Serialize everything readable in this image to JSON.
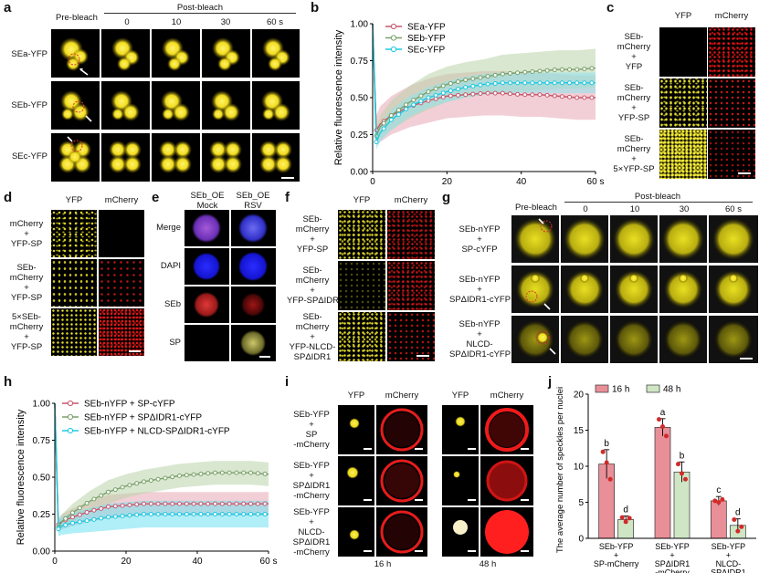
{
  "panels": {
    "a": {
      "letter": "a",
      "header_pre": "Pre-bleach",
      "header_post": "Post-bleach",
      "times": [
        "0",
        "10",
        "30",
        "60 s"
      ],
      "rows": [
        "SEa-YFP",
        "SEb-YFP",
        "SEc-YFP"
      ]
    },
    "b": {
      "letter": "b"
    },
    "c": {
      "letter": "c",
      "cols": [
        "YFP",
        "mCherry"
      ],
      "rows": [
        [
          "SEb-",
          "mCherry",
          "+",
          "YFP"
        ],
        [
          "SEb-",
          "mCherry",
          "+",
          "YFP-SP"
        ],
        [
          "SEb-",
          "mCherry",
          "+",
          "5×YFP-SP"
        ]
      ]
    },
    "d": {
      "letter": "d",
      "cols": [
        "YFP",
        "mCherry"
      ],
      "rows": [
        [
          "mCherry",
          "+",
          "YFP-SP"
        ],
        [
          "SEb-",
          "mCherry",
          "+",
          "YFP-SP"
        ],
        [
          "5×SEb-",
          "mCherry",
          "+",
          "YFP-SP"
        ]
      ]
    },
    "e": {
      "letter": "e",
      "cols": [
        [
          "SEb_OE",
          "Mock"
        ],
        [
          "SEb_OE",
          "RSV"
        ]
      ],
      "rows": [
        "Merge",
        "DAPI",
        "SEb",
        "SP"
      ]
    },
    "f": {
      "letter": "f",
      "cols": [
        "YFP",
        "mCherry"
      ],
      "rows": [
        [
          "SEb-",
          "mCherry",
          "+",
          "YFP-SP"
        ],
        [
          "SEb-",
          "mCherry",
          "+",
          "YFP-SPΔIDR1"
        ],
        [
          "SEb-",
          "mCherry",
          "+",
          "YFP-NLCD-",
          "SPΔIDR1"
        ]
      ]
    },
    "g": {
      "letter": "g",
      "header_pre": "Pre-bleach",
      "header_post": "Post-bleach",
      "times": [
        "0",
        "10",
        "30",
        "60 s"
      ],
      "rows": [
        [
          "SEb-nYFP",
          "+",
          "SP-cYFP"
        ],
        [
          "SEb-nYFP",
          "+",
          "SPΔIDR1-cYFP"
        ],
        [
          "SEb-nYFP",
          "+",
          "NLCD-",
          "SPΔIDR1-cYFP"
        ]
      ]
    },
    "h": {
      "letter": "h"
    },
    "i": {
      "letter": "i",
      "cols": [
        "YFP",
        "mCherry",
        "YFP",
        "mCherry"
      ],
      "times": [
        "16 h",
        "48 h"
      ],
      "rows": [
        [
          "SEb-YFP",
          "+",
          "SP",
          "-mCherry"
        ],
        [
          "SEb-YFP",
          "+",
          "SPΔIDR1",
          "-mCherry"
        ],
        [
          "SEb-YFP",
          "+",
          "NLCD-",
          "SPΔIDR1",
          "-mCherry"
        ]
      ]
    },
    "j": {
      "letter": "j"
    }
  },
  "chart_data": [
    {
      "panel": "b",
      "type": "line",
      "ylabel": "Relative fluorescence intensity",
      "xlim": [
        0,
        60
      ],
      "ylim": [
        0,
        1.0
      ],
      "xticks": [
        0,
        20,
        40,
        60
      ],
      "xtick_labels": [
        "0",
        "20",
        "40",
        "60 s"
      ],
      "yticks": [
        0,
        0.25,
        0.5,
        0.75,
        1.0
      ],
      "ytick_labels": [
        "0.00",
        "0.25",
        "0.50",
        "0.75",
        "1.00"
      ],
      "legend_position": "top-left",
      "series": [
        {
          "name": "SEa-YFP",
          "color": "#c8566c",
          "fill": "#e8a8b4",
          "x": [
            0,
            1,
            2,
            5,
            10,
            15,
            20,
            25,
            30,
            35,
            40,
            45,
            50,
            55,
            60
          ],
          "y": [
            1.0,
            0.28,
            0.32,
            0.38,
            0.44,
            0.48,
            0.51,
            0.52,
            0.53,
            0.53,
            0.52,
            0.52,
            0.51,
            0.5,
            0.5
          ],
          "band": [
            0.06,
            0.1,
            0.12,
            0.13,
            0.14,
            0.15,
            0.15,
            0.15,
            0.15,
            0.15,
            0.15,
            0.15,
            0.15,
            0.15,
            0.15
          ]
        },
        {
          "name": "SEb-YFP",
          "color": "#7aa06a",
          "fill": "#b9d3aa",
          "x": [
            0,
            1,
            2,
            5,
            10,
            15,
            20,
            25,
            30,
            35,
            40,
            45,
            50,
            55,
            60
          ],
          "y": [
            1.0,
            0.24,
            0.3,
            0.38,
            0.47,
            0.54,
            0.59,
            0.62,
            0.64,
            0.66,
            0.67,
            0.68,
            0.69,
            0.69,
            0.7
          ],
          "band": [
            0.05,
            0.06,
            0.08,
            0.1,
            0.11,
            0.12,
            0.12,
            0.12,
            0.12,
            0.13,
            0.13,
            0.13,
            0.13,
            0.13,
            0.13
          ]
        },
        {
          "name": "SEc-YFP",
          "color": "#1ec8e0",
          "fill": "#8fe3ee",
          "x": [
            0,
            1,
            2,
            5,
            10,
            15,
            20,
            25,
            30,
            35,
            40,
            45,
            50,
            55,
            60
          ],
          "y": [
            1.0,
            0.2,
            0.26,
            0.35,
            0.44,
            0.5,
            0.54,
            0.57,
            0.59,
            0.6,
            0.6,
            0.6,
            0.6,
            0.6,
            0.6
          ],
          "band": [
            0.04,
            0.05,
            0.06,
            0.07,
            0.07,
            0.07,
            0.07,
            0.07,
            0.07,
            0.07,
            0.07,
            0.07,
            0.07,
            0.07,
            0.07
          ]
        }
      ]
    },
    {
      "panel": "h",
      "type": "line",
      "ylabel": "Relative fluorescence intensity",
      "xlim": [
        0,
        60
      ],
      "ylim": [
        0,
        1.0
      ],
      "xticks": [
        0,
        20,
        40,
        60
      ],
      "xtick_labels": [
        "0",
        "20",
        "40",
        "60 s"
      ],
      "yticks": [
        0,
        0.25,
        0.5,
        0.75,
        1.0
      ],
      "ytick_labels": [
        "0.00",
        "0.25",
        "0.50",
        "0.75",
        "1.00"
      ],
      "legend_position": "top-left",
      "series": [
        {
          "name": "SEb-nYFP + SP-cYFP",
          "color": "#c8566c",
          "fill": "#e8a8b4",
          "x": [
            0,
            1,
            2,
            5,
            10,
            15,
            20,
            25,
            30,
            35,
            40,
            45,
            50,
            55,
            60
          ],
          "y": [
            1.0,
            0.18,
            0.2,
            0.23,
            0.27,
            0.3,
            0.31,
            0.32,
            0.32,
            0.32,
            0.32,
            0.32,
            0.32,
            0.32,
            0.32
          ],
          "band": [
            0.03,
            0.04,
            0.05,
            0.06,
            0.07,
            0.08,
            0.08,
            0.08,
            0.08,
            0.08,
            0.08,
            0.08,
            0.08,
            0.08,
            0.08
          ]
        },
        {
          "name": "SEb-nYFP + SPΔIDR1-cYFP",
          "color": "#7aa06a",
          "fill": "#b9d3aa",
          "x": [
            0,
            1,
            2,
            5,
            10,
            15,
            20,
            25,
            30,
            35,
            40,
            45,
            50,
            55,
            60
          ],
          "y": [
            1.0,
            0.16,
            0.2,
            0.26,
            0.34,
            0.4,
            0.44,
            0.47,
            0.49,
            0.51,
            0.52,
            0.53,
            0.53,
            0.53,
            0.52
          ],
          "band": [
            0.03,
            0.04,
            0.05,
            0.06,
            0.07,
            0.08,
            0.08,
            0.08,
            0.08,
            0.08,
            0.08,
            0.08,
            0.08,
            0.08,
            0.08
          ]
        },
        {
          "name": "SEb-nYFP + NLCD-SPΔIDR1-cYFP",
          "color": "#1ec8e0",
          "fill": "#6fe2f0",
          "x": [
            0,
            1,
            2,
            5,
            10,
            15,
            20,
            25,
            30,
            35,
            40,
            45,
            50,
            55,
            60
          ],
          "y": [
            1.0,
            0.15,
            0.17,
            0.19,
            0.21,
            0.23,
            0.24,
            0.25,
            0.25,
            0.25,
            0.25,
            0.25,
            0.25,
            0.25,
            0.25
          ],
          "band": [
            0.03,
            0.05,
            0.06,
            0.07,
            0.08,
            0.09,
            0.09,
            0.09,
            0.09,
            0.09,
            0.09,
            0.09,
            0.09,
            0.09,
            0.09
          ]
        }
      ]
    },
    {
      "panel": "j",
      "type": "bar",
      "ylabel": "The average number of speckles per nuclei",
      "ylim": [
        0,
        20
      ],
      "yticks": [
        0,
        5,
        10,
        15,
        20
      ],
      "legend_position": "top-left",
      "categories": [
        [
          "SEb-YFP",
          "+",
          "SP-mCherry"
        ],
        [
          "SEb-YFP",
          "+",
          "SPΔIDR1",
          "-mCherry"
        ],
        [
          "SEb-YFP",
          "+",
          "NLCD-",
          "SPΔIDR1",
          "-mCherry"
        ]
      ],
      "series": [
        {
          "name": "16 h",
          "color": "#e98f98",
          "values": [
            10.3,
            15.4,
            5.2
          ],
          "errors": [
            2.0,
            1.2,
            0.6
          ],
          "letters": [
            "b",
            "a",
            "c"
          ],
          "points": [
            [
              12.0,
              10.5,
              8.2
            ],
            [
              16.5,
              15.5,
              14.2
            ],
            [
              5.2,
              5.0,
              5.4
            ]
          ]
        },
        {
          "name": "48 h",
          "color": "#cfe6c4",
          "values": [
            2.6,
            9.2,
            1.8
          ],
          "errors": [
            0.5,
            1.4,
            0.9
          ],
          "letters": [
            "d",
            "b",
            "d"
          ],
          "points": [
            [
              2.9,
              2.3,
              2.8
            ],
            [
              10.3,
              9.0,
              8.2
            ],
            [
              2.6,
              1.0,
              1.6
            ]
          ]
        }
      ]
    }
  ]
}
